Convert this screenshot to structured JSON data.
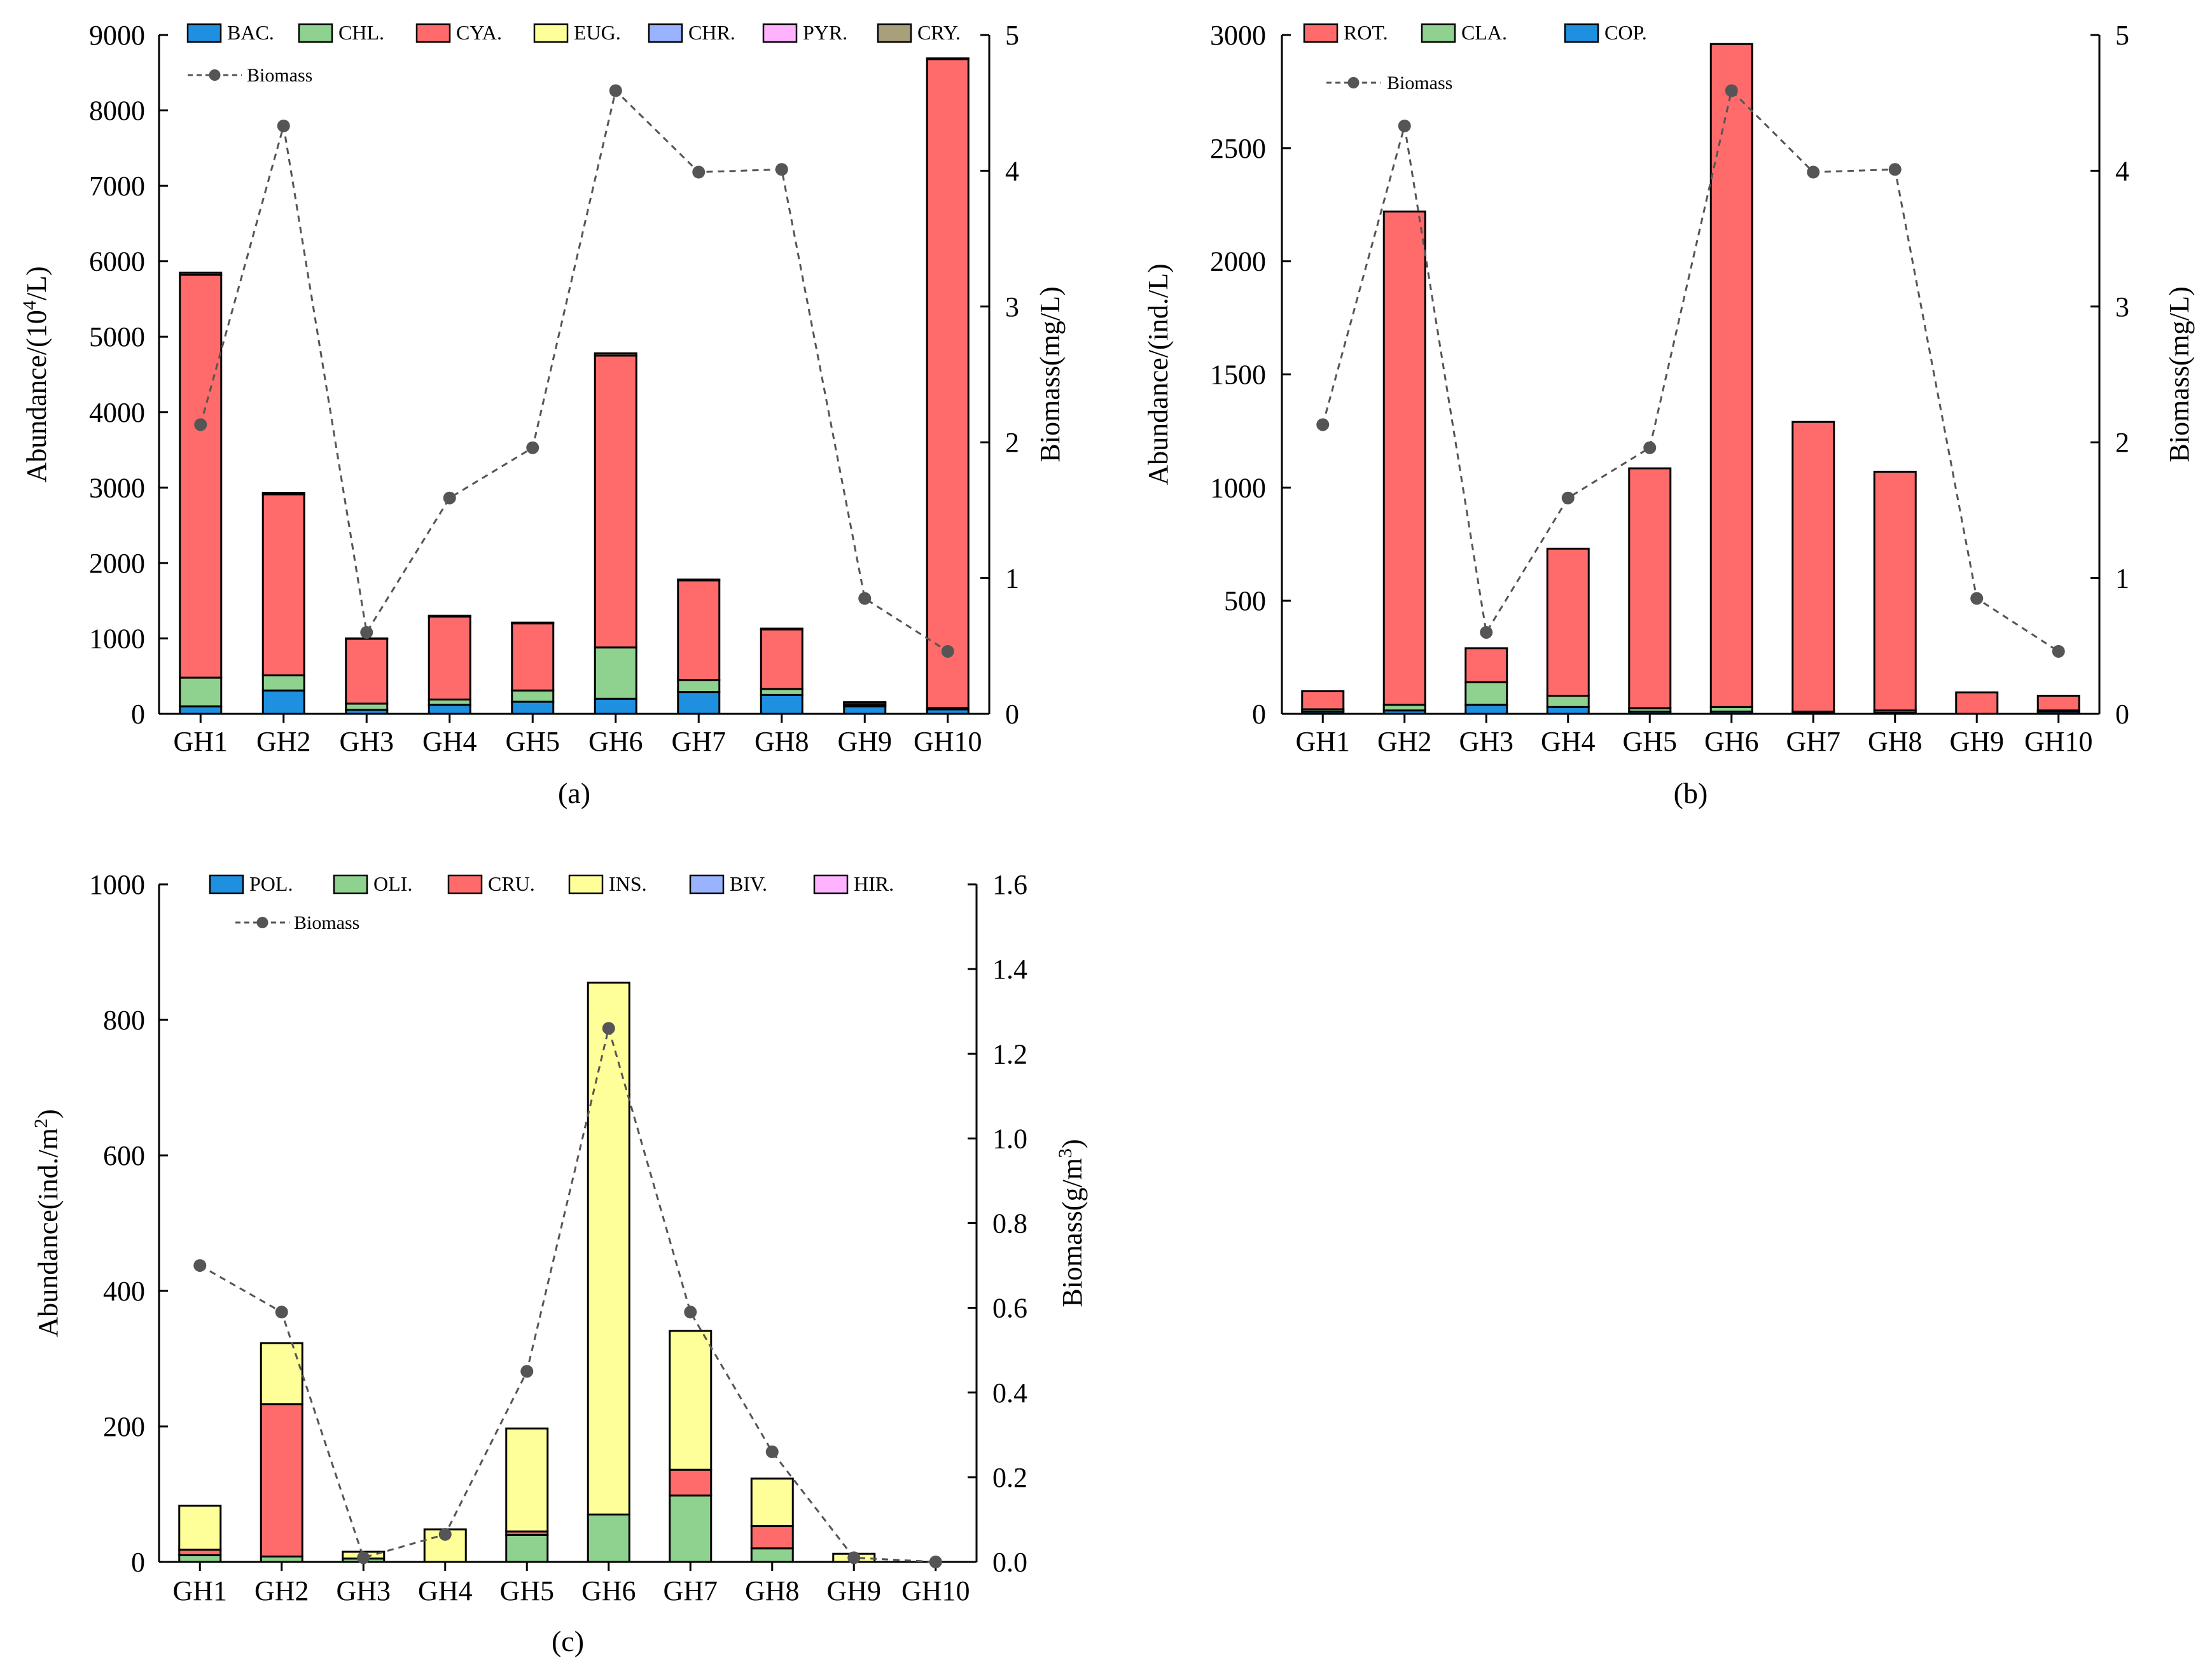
{
  "chart_data": [
    {
      "type": "bar",
      "panel_label": "(a)",
      "stacked": true,
      "categories": [
        "GH1",
        "GH2",
        "GH3",
        "GH4",
        "GH5",
        "GH6",
        "GH7",
        "GH8",
        "GH9",
        "GH10"
      ],
      "ylabel_left": {
        "base": "Abundance/(10",
        "sup": "4",
        "tail": "/L)"
      },
      "ylabel_right": "Biomass(mg/L)",
      "ylim_left": [
        0,
        9000
      ],
      "yticks_left": [
        0,
        1000,
        2000,
        3000,
        4000,
        5000,
        6000,
        7000,
        8000,
        9000
      ],
      "ylim_right": [
        0,
        5
      ],
      "yticks_right": [
        0,
        1,
        2,
        3,
        4,
        5
      ],
      "legend_position": "top",
      "series": [
        {
          "name": "BAC.",
          "color": "#1f8fe0",
          "values": [
            100,
            310,
            55,
            120,
            160,
            200,
            290,
            250,
            100,
            60
          ]
        },
        {
          "name": "CHL.",
          "color": "#8fd18f",
          "values": [
            380,
            200,
            80,
            70,
            150,
            680,
            160,
            80,
            20,
            20
          ]
        },
        {
          "name": "CYA.",
          "color": "#ff6b6b",
          "values": [
            5340,
            2400,
            860,
            1100,
            890,
            3870,
            1320,
            790,
            30,
            8600
          ]
        },
        {
          "name": "EUG.",
          "color": "#ffff99",
          "values": [
            0,
            0,
            0,
            0,
            0,
            0,
            0,
            0,
            0,
            0
          ]
        },
        {
          "name": "CHR.",
          "color": "#99b3ff",
          "values": [
            0,
            0,
            0,
            0,
            0,
            0,
            0,
            0,
            0,
            0
          ]
        },
        {
          "name": "PYR.",
          "color": "#ffb3ff",
          "values": [
            0,
            0,
            0,
            0,
            0,
            0,
            0,
            0,
            0,
            0
          ]
        },
        {
          "name": "CRY.",
          "color": "#a8a07a",
          "values": [
            30,
            20,
            5,
            10,
            10,
            30,
            10,
            10,
            5,
            10
          ]
        }
      ],
      "biomass": {
        "name": "Biomass",
        "color": "#555555",
        "values": [
          2.13,
          4.33,
          0.6,
          1.59,
          1.96,
          4.59,
          3.99,
          4.01,
          0.85,
          0.46
        ]
      }
    },
    {
      "type": "bar",
      "panel_label": "(b)",
      "stacked": true,
      "categories": [
        "GH1",
        "GH2",
        "GH3",
        "GH4",
        "GH5",
        "GH6",
        "GH7",
        "GH8",
        "GH9",
        "GH10"
      ],
      "ylabel_left": {
        "base": "Abundance/(ind./L)",
        "sup": "",
        "tail": ""
      },
      "ylabel_right": "Biomass(mg/L)",
      "ylim_left": [
        0,
        3000
      ],
      "yticks_left": [
        0,
        500,
        1000,
        1500,
        2000,
        2500,
        3000
      ],
      "ylim_right": [
        0,
        5
      ],
      "yticks_right": [
        0,
        1,
        2,
        3,
        4,
        5
      ],
      "legend_position": "top",
      "series": [
        {
          "name": "COP.",
          "color": "#1f8fe0",
          "values": [
            10,
            15,
            40,
            30,
            10,
            10,
            5,
            5,
            0,
            10
          ]
        },
        {
          "name": "CLA.",
          "color": "#8fd18f",
          "values": [
            10,
            25,
            100,
            50,
            15,
            20,
            5,
            10,
            0,
            5
          ]
        },
        {
          "name": "ROT.",
          "color": "#ff6b6b",
          "values": [
            80,
            2180,
            150,
            650,
            1060,
            2930,
            1280,
            1055,
            95,
            65
          ]
        }
      ],
      "legend_order": [
        "ROT.",
        "CLA.",
        "COP."
      ],
      "biomass": {
        "name": "Biomass",
        "color": "#555555",
        "values": [
          2.13,
          4.33,
          0.6,
          1.59,
          1.96,
          4.59,
          3.99,
          4.01,
          0.85,
          0.46
        ]
      }
    },
    {
      "type": "bar",
      "panel_label": "(c)",
      "stacked": true,
      "categories": [
        "GH1",
        "GH2",
        "GH3",
        "GH4",
        "GH5",
        "GH6",
        "GH7",
        "GH8",
        "GH9",
        "GH10"
      ],
      "ylabel_left": {
        "base": "Abundance(ind./m",
        "sup": "2",
        "tail": ")"
      },
      "ylabel_right": {
        "base": "Biomass(g/m",
        "sup": "3",
        "tail": ")"
      },
      "ylim_left": [
        0,
        1000
      ],
      "yticks_left": [
        0,
        200,
        400,
        600,
        800,
        1000
      ],
      "ylim_right": [
        0,
        1.6
      ],
      "yticks_right": [
        "0.0",
        "0.2",
        "0.4",
        "0.6",
        "0.8",
        "1.0",
        "1.2",
        "1.4",
        "1.6"
      ],
      "legend_position": "top",
      "series": [
        {
          "name": "POL.",
          "color": "#1f8fe0",
          "values": [
            0,
            0,
            0,
            0,
            0,
            0,
            0,
            0,
            0,
            0
          ]
        },
        {
          "name": "OLI.",
          "color": "#8fd18f",
          "values": [
            10,
            8,
            5,
            0,
            40,
            70,
            98,
            20,
            0,
            0
          ]
        },
        {
          "name": "CRU.",
          "color": "#ff6b6b",
          "values": [
            8,
            225,
            0,
            0,
            5,
            0,
            38,
            33,
            0,
            0
          ]
        },
        {
          "name": "INS.",
          "color": "#ffff99",
          "values": [
            65,
            90,
            10,
            48,
            152,
            785,
            205,
            70,
            12,
            0
          ]
        },
        {
          "name": "BIV.",
          "color": "#99b3ff",
          "values": [
            0,
            0,
            0,
            0,
            0,
            0,
            0,
            0,
            0,
            0
          ]
        },
        {
          "name": "HIR.",
          "color": "#ffb3ff",
          "values": [
            0,
            0,
            0,
            0,
            0,
            0,
            0,
            0,
            0,
            0
          ]
        }
      ],
      "biomass": {
        "name": "Biomass",
        "color": "#555555",
        "values": [
          0.7,
          0.59,
          0.01,
          0.065,
          0.45,
          1.26,
          0.59,
          0.26,
          0.01,
          0.0
        ]
      }
    }
  ]
}
